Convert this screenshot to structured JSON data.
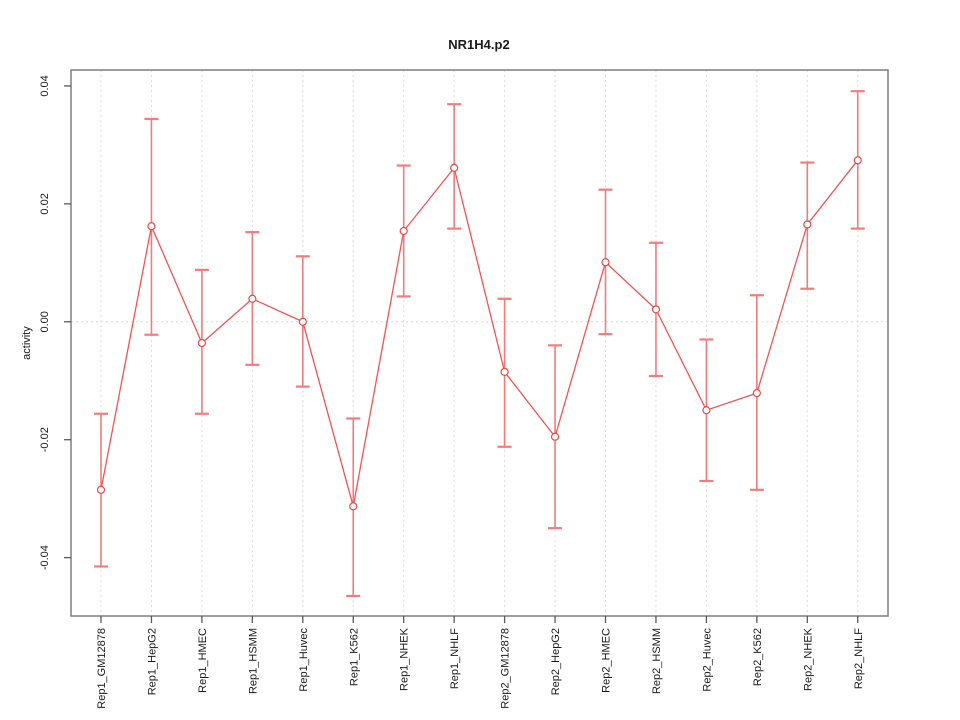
{
  "window": {
    "background": "#ffffff"
  },
  "chart_data": {
    "type": "line",
    "title": "NR1H4.p2",
    "ylabel": "activity",
    "xlabel": "",
    "legend": "none",
    "grid": "dotted vertical line at each category; dotted horizontal line at y=0",
    "categories": [
      "Rep1_GM12878",
      "Rep1_HepG2",
      "Rep1_HMEC",
      "Rep1_HSMM",
      "Rep1_Huvec",
      "Rep1_K562",
      "Rep1_NHEK",
      "Rep1_NHLF",
      "Rep2_GM12878",
      "Rep2_HepG2",
      "Rep2_HMEC",
      "Rep2_HSMM",
      "Rep2_Huvec",
      "Rep2_K562",
      "Rep2_NHEK",
      "Rep2_NHLF"
    ],
    "series": [
      {
        "name": "activity",
        "marker": "open-circle",
        "values": [
          -0.0285,
          0.0162,
          -0.0036,
          0.0039,
          0.0,
          -0.0313,
          0.0154,
          0.0261,
          -0.0085,
          -0.0195,
          0.0101,
          0.0021,
          -0.015,
          -0.0121,
          0.0165,
          0.0274
        ],
        "error_low": [
          -0.0415,
          -0.0022,
          -0.0156,
          -0.0073,
          -0.011,
          -0.0465,
          0.0043,
          0.0158,
          -0.0212,
          -0.035,
          -0.0021,
          -0.0092,
          -0.027,
          -0.0285,
          0.0056,
          0.0158
        ],
        "error_high": [
          -0.0156,
          0.0344,
          0.0088,
          0.0152,
          0.0111,
          -0.0164,
          0.0265,
          0.0369,
          0.0039,
          -0.004,
          0.0224,
          0.0134,
          -0.003,
          0.0045,
          0.027,
          0.0391
        ]
      }
    ],
    "ylim": [
      -0.0499,
      0.0427
    ],
    "yticks": [
      -0.04,
      -0.02,
      0,
      0.02,
      0.04
    ],
    "colors": {
      "series_line": "#ee5555",
      "error_bar": "#f27c7c",
      "marker_stroke": "#e84848",
      "marker_fill": "#ffffff",
      "grid": "#dcdcdc",
      "box": "#7f7f7f",
      "tick": "#5a5a5a",
      "text": "#1a1a1a"
    }
  }
}
